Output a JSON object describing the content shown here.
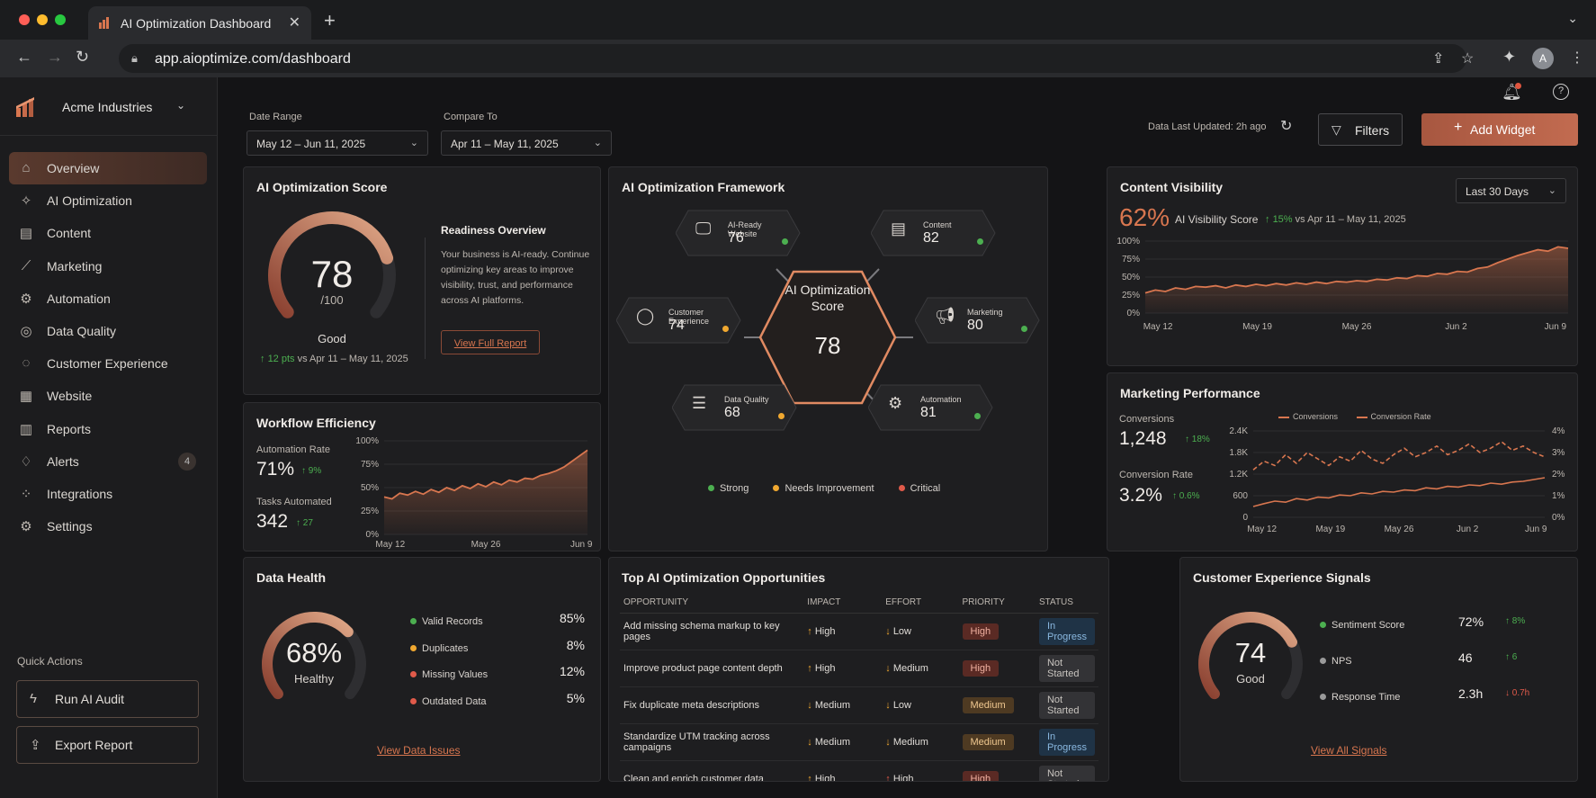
{
  "browser": {
    "tab_title": "AI Optimization Dashboard",
    "url": "app.aioptimize.com/dashboard",
    "avatar": "A"
  },
  "sidebar": {
    "org": "Acme Industries",
    "items": [
      {
        "label": "Overview",
        "icon": "home-icon",
        "active": true
      },
      {
        "label": "AI Optimization",
        "icon": "sparkle-icon"
      },
      {
        "label": "Content",
        "icon": "document-icon"
      },
      {
        "label": "Marketing",
        "icon": "chart-icon"
      },
      {
        "label": "Automation",
        "icon": "automation-icon"
      },
      {
        "label": "Data Quality",
        "icon": "check-shield-icon"
      },
      {
        "label": "Customer Experience",
        "icon": "chat-icon"
      },
      {
        "label": "Website",
        "icon": "browser-icon"
      },
      {
        "label": "Reports",
        "icon": "report-icon"
      },
      {
        "label": "Alerts",
        "icon": "bell-icon",
        "badge": "4"
      },
      {
        "label": "Integrations",
        "icon": "integrations-icon"
      },
      {
        "label": "Settings",
        "icon": "gear-icon"
      }
    ],
    "quick_actions_title": "Quick Actions",
    "quick_actions": [
      {
        "label": "Run AI Audit",
        "icon": "bolt-icon"
      },
      {
        "label": "Export Report",
        "icon": "export-icon"
      }
    ]
  },
  "filters": {
    "date_range_label": "Date Range",
    "date_range_value": "May 12 – Jun 11, 2025",
    "compare_label": "Compare To",
    "compare_value": "Apr 11 – May 11, 2025",
    "updated": "Data Last Updated: 2h ago",
    "filters_btn": "Filters",
    "add_widget_btn": "Add Widget"
  },
  "score_card": {
    "title": "AI Optimization Score",
    "score": "78",
    "denom": "/100",
    "grade": "Good",
    "score_fraction": 0.78,
    "delta": "12 pts",
    "delta_suffix": "vs Apr 11 – May 11, 2025",
    "readiness_title": "Readiness Overview",
    "readiness_text": "Your business is AI-ready. Continue optimizing key areas to improve visibility, trust, and performance across AI platforms.",
    "report_link": "View Full Report"
  },
  "workflow": {
    "title": "Workflow Efficiency",
    "auto_rate_label": "Automation Rate",
    "auto_rate_value": "71%",
    "auto_rate_delta": "9%",
    "tasks_label": "Tasks Automated",
    "tasks_value": "342",
    "tasks_delta": "27"
  },
  "framework": {
    "title": "AI Optimization Framework",
    "center_title": "AI Optimization Score",
    "center_value": "78",
    "nodes": [
      {
        "name": "AI-Ready Website",
        "value": "76",
        "status": "strong",
        "icon": "monitor-icon"
      },
      {
        "name": "Content",
        "value": "82",
        "status": "strong",
        "icon": "document-icon"
      },
      {
        "name": "Customer Experience",
        "value": "74",
        "status": "needs",
        "icon": "user-icon"
      },
      {
        "name": "Marketing",
        "value": "80",
        "status": "strong",
        "icon": "megaphone-icon"
      },
      {
        "name": "Data Quality",
        "value": "68",
        "status": "needs",
        "icon": "database-icon"
      },
      {
        "name": "Automation",
        "value": "81",
        "status": "strong",
        "icon": "gear-icon"
      }
    ],
    "legend": [
      "Strong",
      "Needs Improvement",
      "Critical"
    ],
    "colors": {
      "strong": "#4caf50",
      "needs": "#f0a830",
      "critical": "#e05a4a"
    }
  },
  "visibility": {
    "title": "Content Visibility",
    "range_select": "Last 30 Days",
    "value": "62%",
    "label": "AI Visibility Score",
    "delta": "15%",
    "delta_suffix": "vs Apr 11 – May 11, 2025"
  },
  "marketing": {
    "title": "Marketing Performance",
    "conversions_label": "Conversions",
    "conversions_value": "1,248",
    "conversions_delta": "18%",
    "rate_label": "Conversion Rate",
    "rate_value": "3.2%",
    "rate_delta": "0.6%"
  },
  "data_health": {
    "title": "Data Health",
    "value": "68%",
    "grade": "Healthy",
    "fraction": 0.68,
    "rows": [
      {
        "label": "Valid Records",
        "value": "85%",
        "color": "#4caf50"
      },
      {
        "label": "Duplicates",
        "value": "8%",
        "color": "#f0a830"
      },
      {
        "label": "Missing Values",
        "value": "12%",
        "color": "#e05a4a"
      },
      {
        "label": "Outdated Data",
        "value": "5%",
        "color": "#e05a4a"
      }
    ],
    "link": "View Data Issues"
  },
  "opportunities": {
    "title": "Top AI Optimization Opportunities",
    "headers": [
      "OPPORTUNITY",
      "IMPACT",
      "EFFORT",
      "PRIORITY",
      "STATUS"
    ],
    "rows": [
      {
        "opp": "Add missing schema markup to key pages",
        "impact": "High",
        "impact_dir": "up",
        "effort": "Low",
        "effort_dir": "down",
        "priority": "High",
        "status": "In Progress"
      },
      {
        "opp": "Improve product page content depth",
        "impact": "High",
        "impact_dir": "up",
        "effort": "Medium",
        "effort_dir": "down",
        "priority": "High",
        "status": "Not Started"
      },
      {
        "opp": "Fix duplicate meta descriptions",
        "impact": "Medium",
        "impact_dir": "down",
        "effort": "Low",
        "effort_dir": "down",
        "priority": "Medium",
        "status": "Not Started"
      },
      {
        "opp": "Standardize UTM tracking across campaigns",
        "impact": "Medium",
        "impact_dir": "down",
        "effort": "Medium",
        "effort_dir": "down",
        "priority": "Medium",
        "status": "In Progress"
      },
      {
        "opp": "Clean and enrich customer data",
        "impact": "High",
        "impact_dir": "up",
        "effort": "High",
        "effort_dir": "up-red",
        "priority": "High",
        "status": "Not Started"
      }
    ]
  },
  "cx": {
    "title": "Customer Experience Signals",
    "value": "74",
    "grade": "Good",
    "fraction": 0.74,
    "rows": [
      {
        "label": "Sentiment Score",
        "value": "72%",
        "delta": "8%",
        "dir": "up",
        "color": "#4caf50"
      },
      {
        "label": "NPS",
        "value": "46",
        "delta": "6",
        "dir": "up",
        "color": "#9a9a9a"
      },
      {
        "label": "Response Time",
        "value": "2.3h",
        "delta": "0.7h",
        "dir": "down",
        "color": "#9a9a9a"
      }
    ],
    "link": "View All Signals"
  },
  "chart_data": [
    {
      "type": "area",
      "chart": "visibility",
      "x_ticks": [
        "May 12",
        "May 19",
        "May 26",
        "Jun 2",
        "Jun 9"
      ],
      "y_ticks": [
        "100%",
        "75%",
        "50%",
        "25%",
        "0%"
      ],
      "ylim": [
        0,
        100
      ],
      "values": [
        28,
        32,
        30,
        35,
        33,
        37,
        36,
        38,
        35,
        39,
        37,
        40,
        38,
        41,
        39,
        42,
        40,
        43,
        41,
        44,
        43,
        45,
        44,
        47,
        46,
        49,
        48,
        52,
        51,
        55,
        54,
        58,
        57,
        62,
        64,
        70,
        75,
        80,
        84,
        88,
        86,
        92,
        90
      ]
    },
    {
      "type": "area",
      "chart": "workflow",
      "x_ticks": [
        "May 12",
        "May 26",
        "Jun 9"
      ],
      "y_ticks": [
        "100%",
        "75%",
        "50%",
        "25%",
        "0%"
      ],
      "ylim": [
        0,
        100
      ],
      "values": [
        40,
        38,
        44,
        42,
        46,
        43,
        48,
        45,
        50,
        47,
        52,
        49,
        54,
        51,
        56,
        53,
        58,
        56,
        60,
        59,
        63,
        65,
        68,
        72,
        78,
        84,
        90
      ]
    },
    {
      "type": "line",
      "chart": "marketing",
      "x_ticks": [
        "May 12",
        "May 19",
        "May 26",
        "Jun 2",
        "Jun 9"
      ],
      "y_left_ticks": [
        "2.4K",
        "1.8K",
        "1.2K",
        "600",
        "0"
      ],
      "y_right_ticks": [
        "4%",
        "3%",
        "2%",
        "1%",
        "0%"
      ],
      "series": [
        {
          "name": "Conversions",
          "ylim": [
            0,
            2400
          ],
          "values": [
            300,
            380,
            450,
            420,
            520,
            480,
            560,
            540,
            620,
            600,
            680,
            650,
            720,
            700,
            760,
            740,
            820,
            790,
            860,
            840,
            900,
            880,
            950,
            920,
            980,
            1000,
            1050,
            1100
          ]
        },
        {
          "name": "Conversion Rate",
          "ylim": [
            0,
            4
          ],
          "values": [
            2.2,
            2.6,
            2.4,
            2.9,
            2.5,
            3.0,
            2.7,
            2.4,
            2.8,
            2.6,
            3.1,
            2.7,
            2.5,
            2.9,
            3.2,
            2.8,
            3.0,
            3.3,
            2.9,
            3.1,
            3.4,
            3.0,
            3.2,
            3.5,
            3.1,
            3.3,
            3.0,
            2.8
          ]
        }
      ]
    }
  ]
}
